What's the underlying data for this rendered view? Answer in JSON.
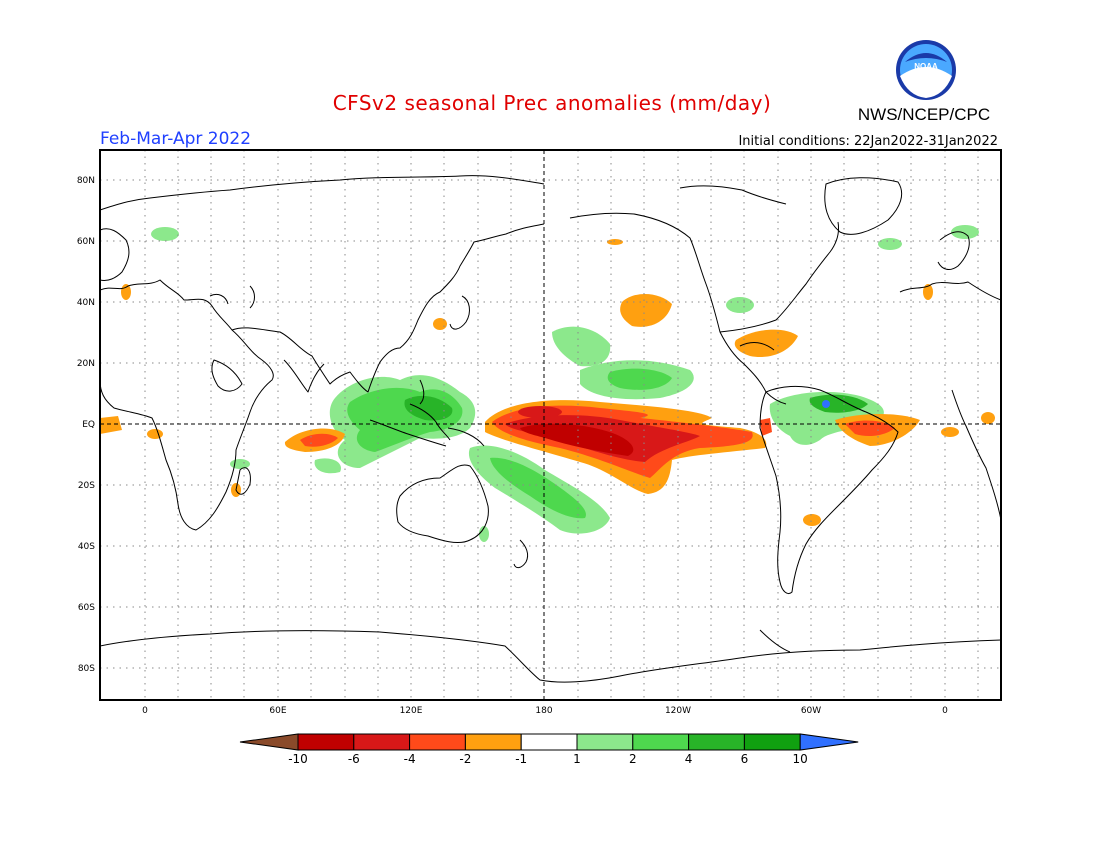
{
  "title": "CFSv2 seasonal Prec anomalies (mm/day)",
  "period": "Feb-Mar-Apr 2022",
  "initial_conditions": "Initial conditions: 22Jan2022-31Jan2022",
  "organization": "NWS/NCEP/CPC",
  "logo_text": "NOAA",
  "axes": {
    "lat_ticks": [
      "80N",
      "60N",
      "40N",
      "20N",
      "EQ",
      "20S",
      "40S",
      "60S",
      "80S"
    ],
    "lon_ticks": [
      "0",
      "60E",
      "120E",
      "180",
      "120W",
      "60W",
      "0"
    ]
  },
  "colorbar": {
    "labels": [
      "-10",
      "-6",
      "-4",
      "-2",
      "-1",
      "1",
      "2",
      "4",
      "6",
      "10"
    ],
    "colors": [
      "#8a4a2a",
      "#c00000",
      "#d81818",
      "#ff4a1a",
      "#ffa010",
      "#ffffff",
      "#8ce88c",
      "#4ed84e",
      "#28b428",
      "#10a010",
      "#3070ff"
    ]
  }
}
